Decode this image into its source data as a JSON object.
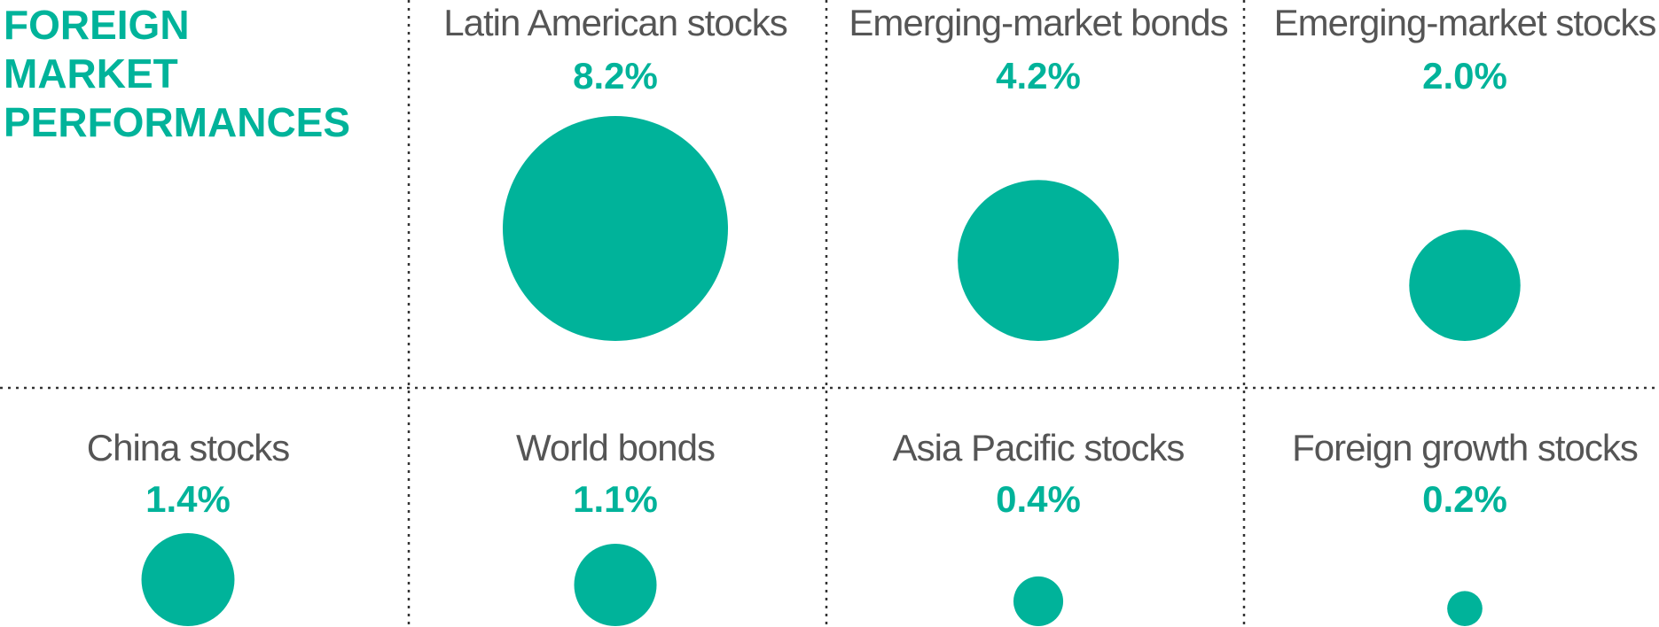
{
  "title": "FOREIGN MARKET PERFORMANCES",
  "title_lines": [
    "FOREIGN",
    "MARKET",
    "PERFORMANCES"
  ],
  "colors": {
    "accent": "#00b39a",
    "label": "#555555",
    "divider": "#333333"
  },
  "chart_data": {
    "type": "bubble",
    "title": "FOREIGN MARKET PERFORMANCES",
    "unit": "%",
    "categories": [
      "Latin American stocks",
      "Emerging-market bonds",
      "Emerging-market stocks",
      "China stocks",
      "World bonds",
      "Asia Pacific stocks",
      "Foreign growth stocks"
    ],
    "values": [
      8.2,
      4.2,
      2.0,
      1.4,
      1.1,
      0.4,
      0.2
    ],
    "value_labels": [
      "8.2%",
      "4.2%",
      "2.0%",
      "1.4%",
      "1.1%",
      "0.4%",
      "0.2%"
    ]
  }
}
